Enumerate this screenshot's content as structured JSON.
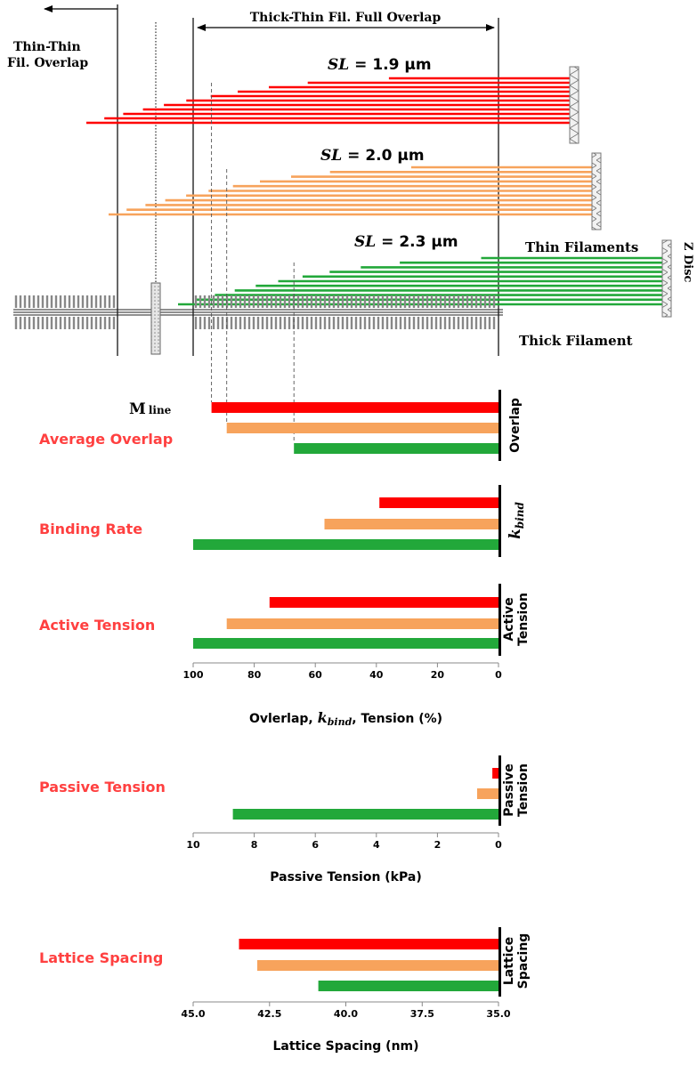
{
  "schematic": {
    "labels": {
      "thin_thin_line1": "Thin-Thin",
      "thin_thin_line2": "Fil. Overlap",
      "full_overlap": "Thick-Thin Fil. Full Overlap",
      "thin_filaments": "Thin Filaments",
      "thick_filament": "Thick Filament",
      "z_disc": "Z Disc",
      "m_line_main": "M",
      "m_line_sub": "line",
      "sl_prefix": "SL"
    },
    "sarcomere_lengths": [
      {
        "value": "= 1.9 µm",
        "color": "#ff0000"
      },
      {
        "value": "= 2.0 µm",
        "color": "#f7a35c"
      },
      {
        "value": "= 2.3 µm",
        "color": "#22a83a"
      }
    ]
  },
  "chart_data": [
    {
      "type": "bar",
      "orientation": "horizontal",
      "title": "Average Overlap",
      "side_label": [
        "Overlap"
      ],
      "values": [
        94,
        89,
        67
      ],
      "xlim": [
        100,
        0
      ],
      "colors": [
        "#ff0000",
        "#f7a35c",
        "#22a83a"
      ]
    },
    {
      "type": "bar",
      "orientation": "horizontal",
      "title": "Binding Rate",
      "side_label": [
        "k",
        "bind"
      ],
      "values": [
        39,
        57,
        100
      ],
      "xlim": [
        100,
        0
      ],
      "colors": [
        "#ff0000",
        "#f7a35c",
        "#22a83a"
      ]
    },
    {
      "type": "bar",
      "orientation": "horizontal",
      "title": "Active Tension",
      "side_label": [
        "Active",
        "Tension"
      ],
      "values": [
        75,
        89,
        100
      ],
      "xlim": [
        100,
        0
      ],
      "ticks": [
        "100",
        "80",
        "60",
        "40",
        "20",
        "0"
      ],
      "xlabel_parts": [
        "Ovlerlap, ",
        "k",
        "bind",
        ", Tension (%)"
      ],
      "colors": [
        "#ff0000",
        "#f7a35c",
        "#22a83a"
      ]
    },
    {
      "type": "bar",
      "orientation": "horizontal",
      "title": "Passive Tension",
      "side_label": [
        "Passive",
        "Tension"
      ],
      "values": [
        0.2,
        0.7,
        8.7
      ],
      "xlim": [
        10,
        0
      ],
      "ticks": [
        "10",
        "8",
        "6",
        "4",
        "2",
        "0"
      ],
      "xlabel": "Passive Tension (kPa)",
      "colors": [
        "#ff0000",
        "#f7a35c",
        "#22a83a"
      ]
    },
    {
      "type": "bar",
      "orientation": "horizontal",
      "title": "Lattice Spacing",
      "side_label": [
        "Lattice",
        "Spacing"
      ],
      "values": [
        43.5,
        42.9,
        40.9
      ],
      "xlim": [
        45,
        35
      ],
      "ticks": [
        "45.0",
        "42.5",
        "40.0",
        "37.5",
        "35.0"
      ],
      "xlabel": "Lattice Spacing (nm)",
      "colors": [
        "#ff0000",
        "#f7a35c",
        "#22a83a"
      ]
    }
  ]
}
